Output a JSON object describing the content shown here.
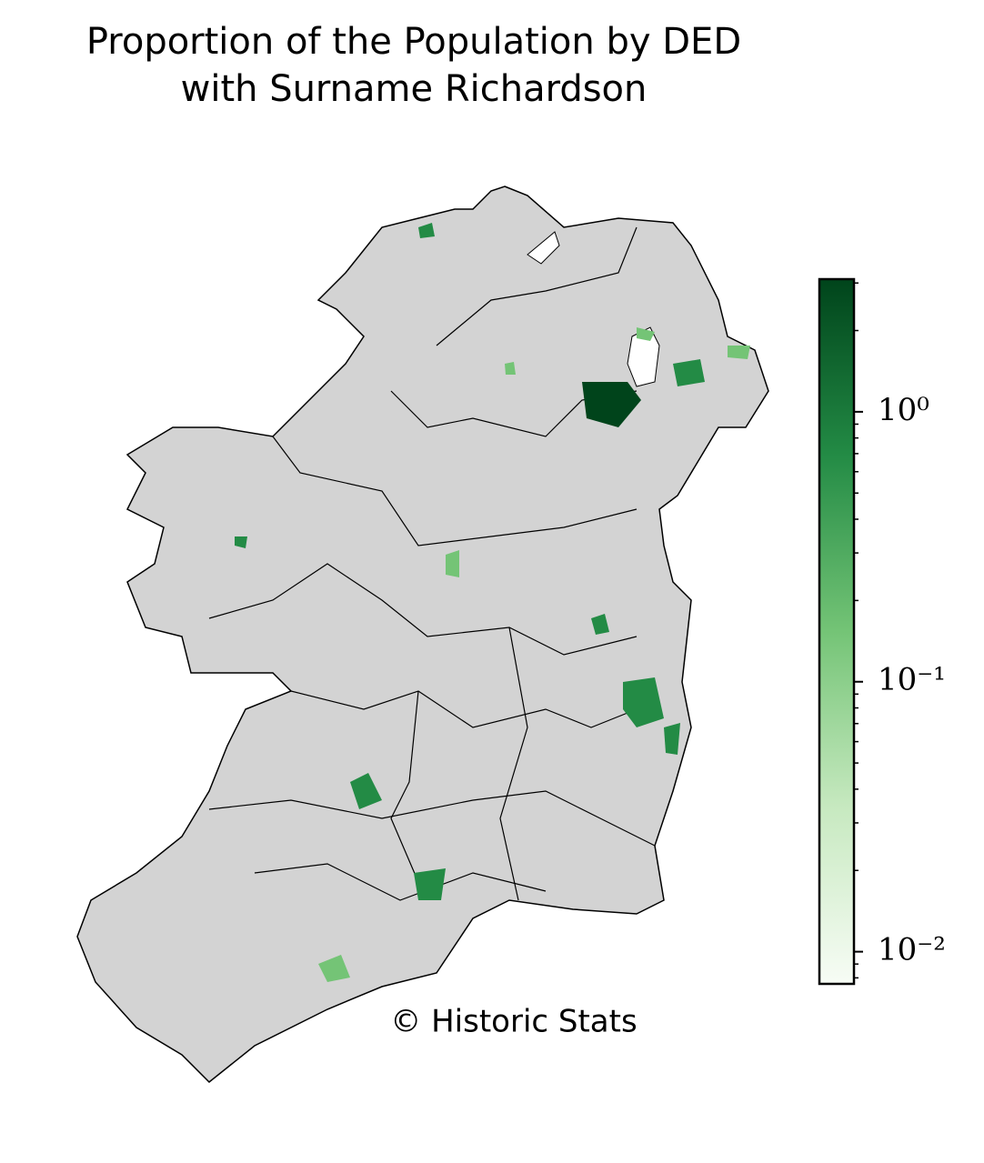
{
  "chart_data": {
    "type": "choropleth",
    "title": [
      "Proportion of the Population by DED",
      "with Surname Richardson"
    ],
    "annotation": "© Historic Stats",
    "colorbar": {
      "scale": "log",
      "lim": [
        0.0076,
        3.1
      ],
      "colors": [
        "#f7fcf5",
        "#c7e9c0",
        "#74c476",
        "#238b45",
        "#00441b"
      ],
      "ticks": [
        {
          "value": 1,
          "label": "10⁰"
        },
        {
          "value": 0.1,
          "label": "10⁻¹"
        },
        {
          "value": 0.01,
          "label": "10⁻²"
        }
      ],
      "minor_ticks": [
        0.008,
        0.009,
        0.02,
        0.03,
        0.04,
        0.05,
        0.06,
        0.07,
        0.08,
        0.09,
        0.2,
        0.3,
        0.4,
        0.5,
        0.6,
        0.7,
        0.8,
        0.9,
        2,
        3
      ]
    }
  }
}
